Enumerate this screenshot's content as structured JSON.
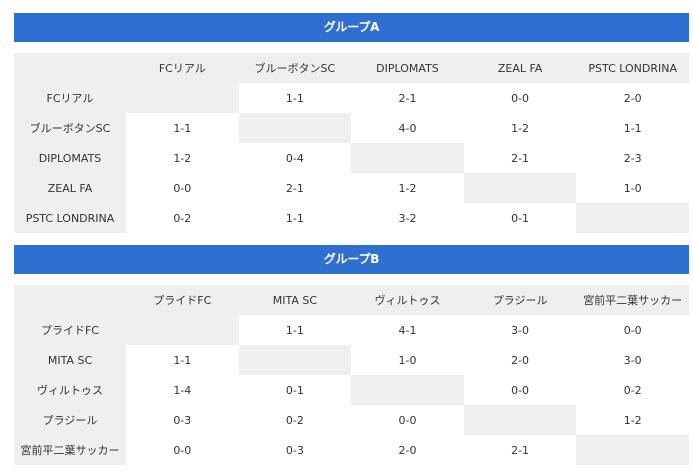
{
  "groups": [
    {
      "title": "グループA",
      "teams": [
        "FCリアル",
        "ブルーボタンSC",
        "DIPLOMATS",
        "ZEAL FA",
        "PSTC LONDRINA"
      ],
      "results": [
        [
          "",
          "1-1",
          "2-1",
          "0-0",
          "2-0"
        ],
        [
          "1-1",
          "",
          "4-0",
          "1-2",
          "1-1"
        ],
        [
          "1-2",
          "0-4",
          "",
          "2-1",
          "2-3"
        ],
        [
          "0-0",
          "2-1",
          "1-2",
          "",
          "1-0"
        ],
        [
          "0-2",
          "1-1",
          "3-2",
          "0-1",
          ""
        ]
      ]
    },
    {
      "title": "グループB",
      "teams": [
        "プライドFC",
        "MITA SC",
        "ヴィルトゥス",
        "プラジール",
        "宮前平二葉サッカー"
      ],
      "results": [
        [
          "",
          "1-1",
          "4-1",
          "3-0",
          "0-0"
        ],
        [
          "1-1",
          "",
          "1-0",
          "2-0",
          "3-0"
        ],
        [
          "1-4",
          "0-1",
          "",
          "0-0",
          "0-2"
        ],
        [
          "0-3",
          "0-2",
          "0-0",
          "",
          "1-2"
        ],
        [
          "0-0",
          "0-3",
          "2-0",
          "2-1",
          ""
        ]
      ]
    }
  ]
}
